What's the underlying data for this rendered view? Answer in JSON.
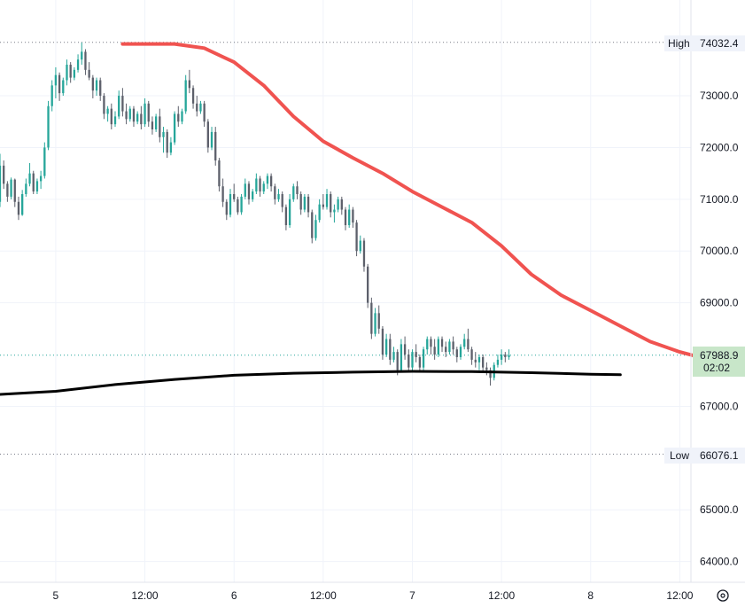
{
  "chart_data": {
    "type": "candlestick",
    "x_axis": {
      "tick_labels": [
        "5",
        "12:00",
        "6",
        "12:00",
        "7",
        "12:00",
        "8",
        "12:00"
      ],
      "range_hours": [
        -7.5,
        85.5
      ]
    },
    "y_axis": {
      "position": "right",
      "range": [
        63600,
        74850
      ],
      "tick_values": [
        73000,
        72000,
        71000,
        70000,
        69000,
        67000,
        65000,
        64000
      ],
      "tick_labels": [
        "73000.0",
        "72000.0",
        "71000.0",
        "70000.0",
        "69000.0",
        "67000.0",
        "65000.0",
        "64000.0"
      ]
    },
    "grid": true,
    "markers": {
      "high": {
        "label": "High",
        "value": 74032.4,
        "value_label": "74032.4"
      },
      "low": {
        "label": "Low",
        "value": 66076.1,
        "value_label": "66076.1"
      },
      "last": {
        "value": 67988.9,
        "value_label": "67988.9",
        "countdown": "02:02"
      }
    },
    "ohlc_x_start_hours": -7.5,
    "ohlc_step_hours": 0.5,
    "ohlc": [
      [
        70950,
        71880,
        70850,
        71650
      ],
      [
        71650,
        71750,
        71200,
        71300
      ],
      [
        71300,
        71350,
        70950,
        71050
      ],
      [
        71050,
        71420,
        71000,
        71380
      ],
      [
        71380,
        71400,
        70850,
        70950
      ],
      [
        70950,
        71050,
        70600,
        70700
      ],
      [
        70700,
        71180,
        70680,
        71100
      ],
      [
        71100,
        71400,
        71050,
        71300
      ],
      [
        71300,
        71700,
        71250,
        71500
      ],
      [
        71500,
        71550,
        71100,
        71150
      ],
      [
        71150,
        71400,
        71100,
        71350
      ],
      [
        71350,
        71550,
        71200,
        71450
      ],
      [
        71450,
        72100,
        71400,
        72000
      ],
      [
        72000,
        72900,
        71950,
        72800
      ],
      [
        72800,
        73300,
        72700,
        73200
      ],
      [
        73200,
        73550,
        72950,
        73400
      ],
      [
        73400,
        73450,
        72900,
        73050
      ],
      [
        73050,
        73350,
        73000,
        73300
      ],
      [
        73300,
        73700,
        73200,
        73600
      ],
      [
        73600,
        73650,
        73250,
        73350
      ],
      [
        73350,
        73550,
        73300,
        73500
      ],
      [
        73500,
        73800,
        73450,
        73700
      ],
      [
        73700,
        74030,
        73600,
        73850
      ],
      [
        73850,
        73900,
        73400,
        73500
      ],
      [
        73500,
        73650,
        73300,
        73350
      ],
      [
        73350,
        73400,
        72950,
        73100
      ],
      [
        73100,
        73350,
        73000,
        73300
      ],
      [
        73300,
        73350,
        72900,
        73000
      ],
      [
        73000,
        73050,
        72550,
        72650
      ],
      [
        72650,
        72800,
        72500,
        72750
      ],
      [
        72750,
        72850,
        72350,
        72450
      ],
      [
        72450,
        72700,
        72400,
        72600
      ],
      [
        72600,
        73100,
        72550,
        73000
      ],
      [
        73000,
        73150,
        72600,
        72700
      ],
      [
        72700,
        72850,
        72450,
        72550
      ],
      [
        72550,
        72800,
        72500,
        72750
      ],
      [
        72750,
        72800,
        72400,
        72500
      ],
      [
        72500,
        72700,
        72450,
        72650
      ],
      [
        72650,
        72800,
        72350,
        72450
      ],
      [
        72450,
        72950,
        72400,
        72850
      ],
      [
        72850,
        72900,
        72400,
        72500
      ],
      [
        72500,
        72600,
        72250,
        72350
      ],
      [
        72350,
        72650,
        72300,
        72600
      ],
      [
        72600,
        72750,
        72100,
        72200
      ],
      [
        72200,
        72400,
        71900,
        72300
      ],
      [
        72300,
        72350,
        71800,
        71900
      ],
      [
        71900,
        72200,
        71850,
        72100
      ],
      [
        72100,
        72700,
        72050,
        72650
      ],
      [
        72650,
        72800,
        72400,
        72500
      ],
      [
        72500,
        72750,
        72450,
        72700
      ],
      [
        72700,
        73400,
        72650,
        73300
      ],
      [
        73300,
        73500,
        73050,
        73150
      ],
      [
        73150,
        73200,
        72750,
        72850
      ],
      [
        72850,
        73000,
        72600,
        72700
      ],
      [
        72700,
        72900,
        72650,
        72850
      ],
      [
        72850,
        72900,
        72400,
        72500
      ],
      [
        72500,
        72550,
        71900,
        72000
      ],
      [
        72000,
        72400,
        71950,
        72300
      ],
      [
        72300,
        72400,
        71650,
        71750
      ],
      [
        71750,
        71800,
        71150,
        71250
      ],
      [
        71250,
        71400,
        70850,
        70950
      ],
      [
        70950,
        71000,
        70600,
        70700
      ],
      [
        70700,
        71200,
        70650,
        71100
      ],
      [
        71100,
        71300,
        70950,
        71000
      ],
      [
        71000,
        71050,
        70700,
        70750
      ],
      [
        70750,
        71100,
        70700,
        71050
      ],
      [
        71050,
        71400,
        71000,
        71300
      ],
      [
        71300,
        71350,
        70900,
        71000
      ],
      [
        71000,
        71200,
        70950,
        71150
      ],
      [
        71150,
        71500,
        71100,
        71400
      ],
      [
        71400,
        71450,
        71050,
        71150
      ],
      [
        71150,
        71350,
        71100,
        71300
      ],
      [
        71300,
        71500,
        71200,
        71450
      ],
      [
        71450,
        71500,
        71150,
        71250
      ],
      [
        71250,
        71300,
        70900,
        71000
      ],
      [
        71000,
        71200,
        70950,
        71100
      ],
      [
        71100,
        71150,
        70750,
        70850
      ],
      [
        70850,
        70900,
        70400,
        70500
      ],
      [
        70500,
        71100,
        70450,
        71000
      ],
      [
        71000,
        71300,
        70950,
        71250
      ],
      [
        71250,
        71350,
        71000,
        71100
      ],
      [
        71100,
        71150,
        70700,
        70800
      ],
      [
        70800,
        71100,
        70750,
        71050
      ],
      [
        71050,
        71100,
        70650,
        70750
      ],
      [
        70750,
        70800,
        70150,
        70250
      ],
      [
        70250,
        70700,
        70200,
        70600
      ],
      [
        70600,
        71000,
        70550,
        70900
      ],
      [
        70900,
        71100,
        70800,
        70850
      ],
      [
        70850,
        71200,
        70800,
        71100
      ],
      [
        71100,
        71150,
        70650,
        70750
      ],
      [
        70750,
        70900,
        70550,
        70800
      ],
      [
        70800,
        71050,
        70750,
        71000
      ],
      [
        71000,
        71050,
        70700,
        70800
      ],
      [
        70800,
        70850,
        70400,
        70500
      ],
      [
        70500,
        70900,
        70450,
        70800
      ],
      [
        70800,
        70850,
        70450,
        70550
      ],
      [
        70550,
        70600,
        69900,
        70000
      ],
      [
        70000,
        70300,
        69950,
        70200
      ],
      [
        70200,
        70250,
        69600,
        69700
      ],
      [
        69700,
        69750,
        68900,
        69000
      ],
      [
        69000,
        69100,
        68300,
        68400
      ],
      [
        68400,
        68900,
        68350,
        68800
      ],
      [
        68800,
        68950,
        68400,
        68500
      ],
      [
        68500,
        68550,
        67900,
        68000
      ],
      [
        68000,
        68400,
        67950,
        68300
      ],
      [
        68300,
        68400,
        67800,
        67900
      ],
      [
        67900,
        68150,
        67850,
        68050
      ],
      [
        68050,
        68100,
        67600,
        67700
      ],
      [
        67700,
        68300,
        67650,
        68200
      ],
      [
        68200,
        68350,
        67900,
        68000
      ],
      [
        68000,
        68100,
        67650,
        67750
      ],
      [
        67750,
        68100,
        67700,
        68050
      ],
      [
        68050,
        68200,
        67850,
        67950
      ],
      [
        67950,
        68000,
        67650,
        67750
      ],
      [
        67750,
        68150,
        67700,
        68100
      ],
      [
        68100,
        68350,
        68000,
        68300
      ],
      [
        68300,
        68350,
        68000,
        68150
      ],
      [
        68150,
        68300,
        67900,
        68000
      ],
      [
        68000,
        68350,
        67950,
        68300
      ],
      [
        68300,
        68350,
        68050,
        68150
      ],
      [
        68150,
        68250,
        67950,
        68050
      ],
      [
        68050,
        68300,
        68000,
        68250
      ],
      [
        68250,
        68350,
        68000,
        68100
      ],
      [
        68100,
        68150,
        67850,
        67950
      ],
      [
        67950,
        68200,
        67900,
        68150
      ],
      [
        68150,
        68400,
        68100,
        68300
      ],
      [
        68300,
        68500,
        68050,
        68100
      ],
      [
        68100,
        68150,
        67800,
        67900
      ],
      [
        67900,
        68050,
        67750,
        67850
      ],
      [
        67850,
        68000,
        67700,
        67950
      ],
      [
        67950,
        68000,
        67650,
        67750
      ],
      [
        67750,
        67850,
        67600,
        67700
      ],
      [
        67700,
        67750,
        67400,
        67550
      ],
      [
        67550,
        67850,
        67500,
        67800
      ],
      [
        67800,
        68000,
        67750,
        67900
      ],
      [
        67900,
        68100,
        67800,
        68000
      ],
      [
        68000,
        68050,
        67850,
        67950
      ],
      [
        67950,
        68100,
        67900,
        67990
      ]
    ],
    "red_line": {
      "color": "#f05350",
      "points": [
        [
          9,
          74000
        ],
        [
          16,
          74000
        ],
        [
          20,
          73920
        ],
        [
          24,
          73650
        ],
        [
          28,
          73200
        ],
        [
          32,
          72600
        ],
        [
          36,
          72120
        ],
        [
          40,
          71800
        ],
        [
          44,
          71500
        ],
        [
          48,
          71150
        ],
        [
          52,
          70850
        ],
        [
          56,
          70550
        ],
        [
          60,
          70100
        ],
        [
          64,
          69550
        ],
        [
          68,
          69150
        ],
        [
          72,
          68850
        ],
        [
          76,
          68550
        ],
        [
          80,
          68250
        ],
        [
          84,
          68050
        ],
        [
          88,
          67900
        ]
      ]
    },
    "black_line": {
      "color": "#000000",
      "points": [
        [
          -7.5,
          67230
        ],
        [
          0,
          67290
        ],
        [
          8,
          67420
        ],
        [
          16,
          67520
        ],
        [
          24,
          67600
        ],
        [
          32,
          67640
        ],
        [
          40,
          67660
        ],
        [
          48,
          67675
        ],
        [
          56,
          67670
        ],
        [
          64,
          67650
        ],
        [
          72,
          67620
        ],
        [
          76,
          67610
        ]
      ]
    }
  }
}
